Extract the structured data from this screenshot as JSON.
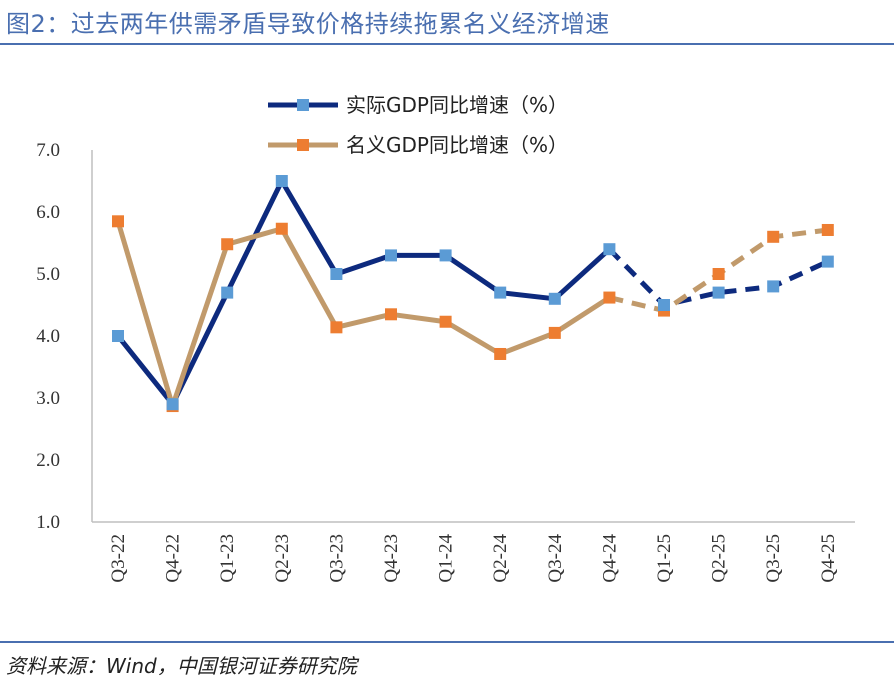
{
  "header": {
    "title": "图2：过去两年供需矛盾导致价格持续拖累名义经济增速"
  },
  "footer": {
    "source": "资料来源：Wind，中国银河证券研究院"
  },
  "chart_data": {
    "type": "line",
    "categories": [
      "Q3-22",
      "Q4-22",
      "Q1-23",
      "Q2-23",
      "Q3-23",
      "Q4-23",
      "Q1-24",
      "Q2-24",
      "Q3-24",
      "Q4-24",
      "Q1-25",
      "Q2-25",
      "Q3-25",
      "Q4-25"
    ],
    "series": [
      {
        "name": "实际GDP同比增速（%）",
        "values": [
          4.0,
          2.9,
          4.7,
          6.5,
          5.0,
          5.3,
          5.3,
          4.7,
          4.6,
          5.4,
          4.5,
          4.7,
          4.8,
          5.2
        ],
        "line_color": "#0d2a7e",
        "marker_color": "#5b9bd5",
        "dashed_from_index": 9
      },
      {
        "name": "名义GDP同比增速（%）",
        "values": [
          5.85,
          2.87,
          5.48,
          5.73,
          4.14,
          4.35,
          4.23,
          3.71,
          4.05,
          4.62,
          4.41,
          5.0,
          5.6,
          5.71
        ],
        "line_color": "#c19a6b",
        "marker_color": "#ed7d31",
        "dashed_from_index": 9
      }
    ],
    "y_ticks": [
      "7.0",
      "6.0",
      "5.0",
      "4.0",
      "3.0",
      "2.0",
      "1.0"
    ],
    "ylim": [
      1.0,
      7.0
    ],
    "grid": false,
    "legend_position": "top-center"
  }
}
